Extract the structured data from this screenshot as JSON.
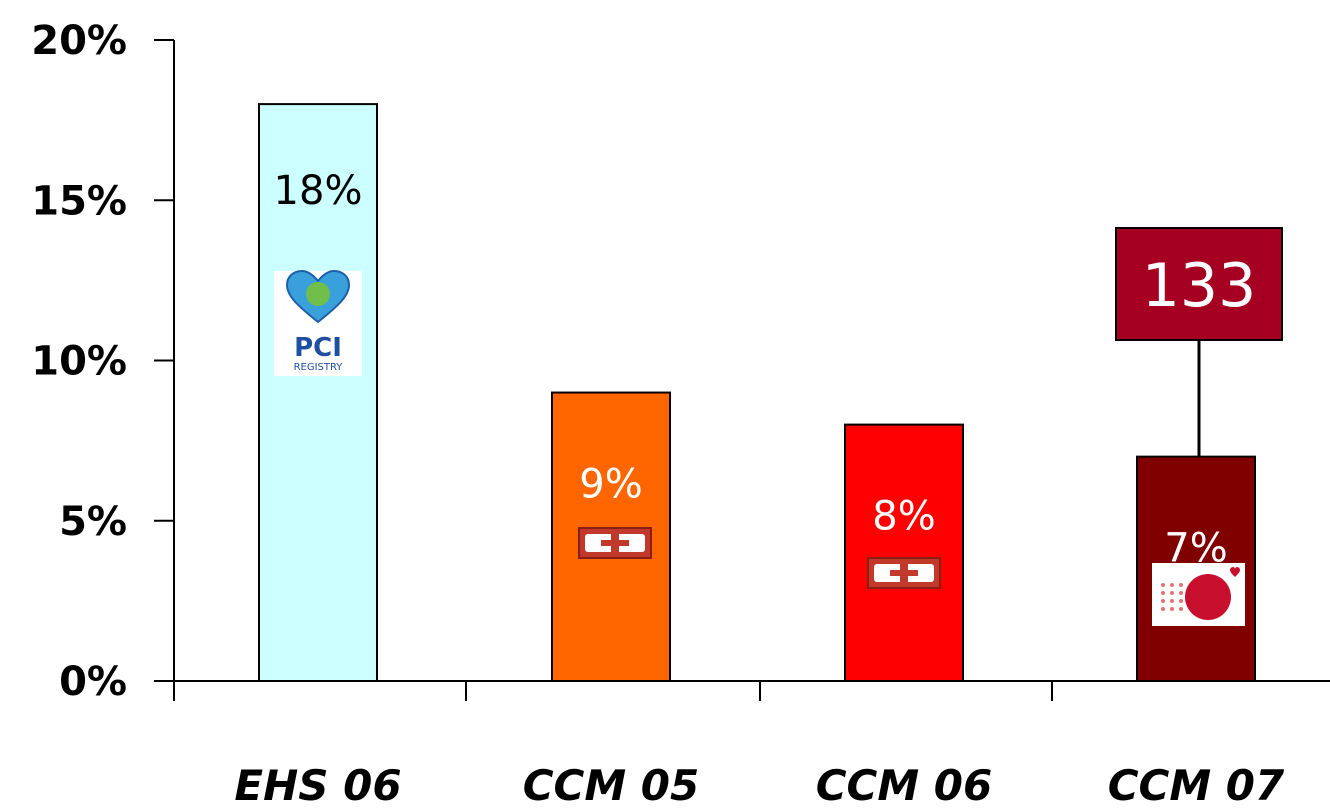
{
  "chart_data": {
    "type": "bar",
    "title": "",
    "xlabel": "",
    "ylabel": "",
    "categories": [
      "EHS 06",
      "CCM 05",
      "CCM 06",
      "CCM 07"
    ],
    "values": [
      18,
      9,
      8,
      7
    ],
    "data_labels": [
      "18%",
      "9%",
      "8%",
      "7%"
    ],
    "y_ticks": [
      "0%",
      "5%",
      "10%",
      "15%",
      "20%"
    ],
    "y_tick_values": [
      0,
      5,
      10,
      15,
      20
    ],
    "ylim": [
      0,
      20
    ],
    "grid": false,
    "bar_colors": [
      "#ccffff",
      "#ff6600",
      "#ff0000",
      "#800000"
    ],
    "data_label_colors": [
      "#000000",
      "#ffffff",
      "#ffffff",
      "#ffffff"
    ],
    "callout": {
      "text": "133",
      "category": "CCM 07",
      "fill": "#a50021"
    },
    "logos": [
      "pci-registry-logo",
      "cardio-cross-logo",
      "cardio-cross-logo",
      "red-sphere-heart-logo"
    ],
    "logo_texts": {
      "pci": "PCI",
      "registry": "REGISTRY"
    }
  }
}
